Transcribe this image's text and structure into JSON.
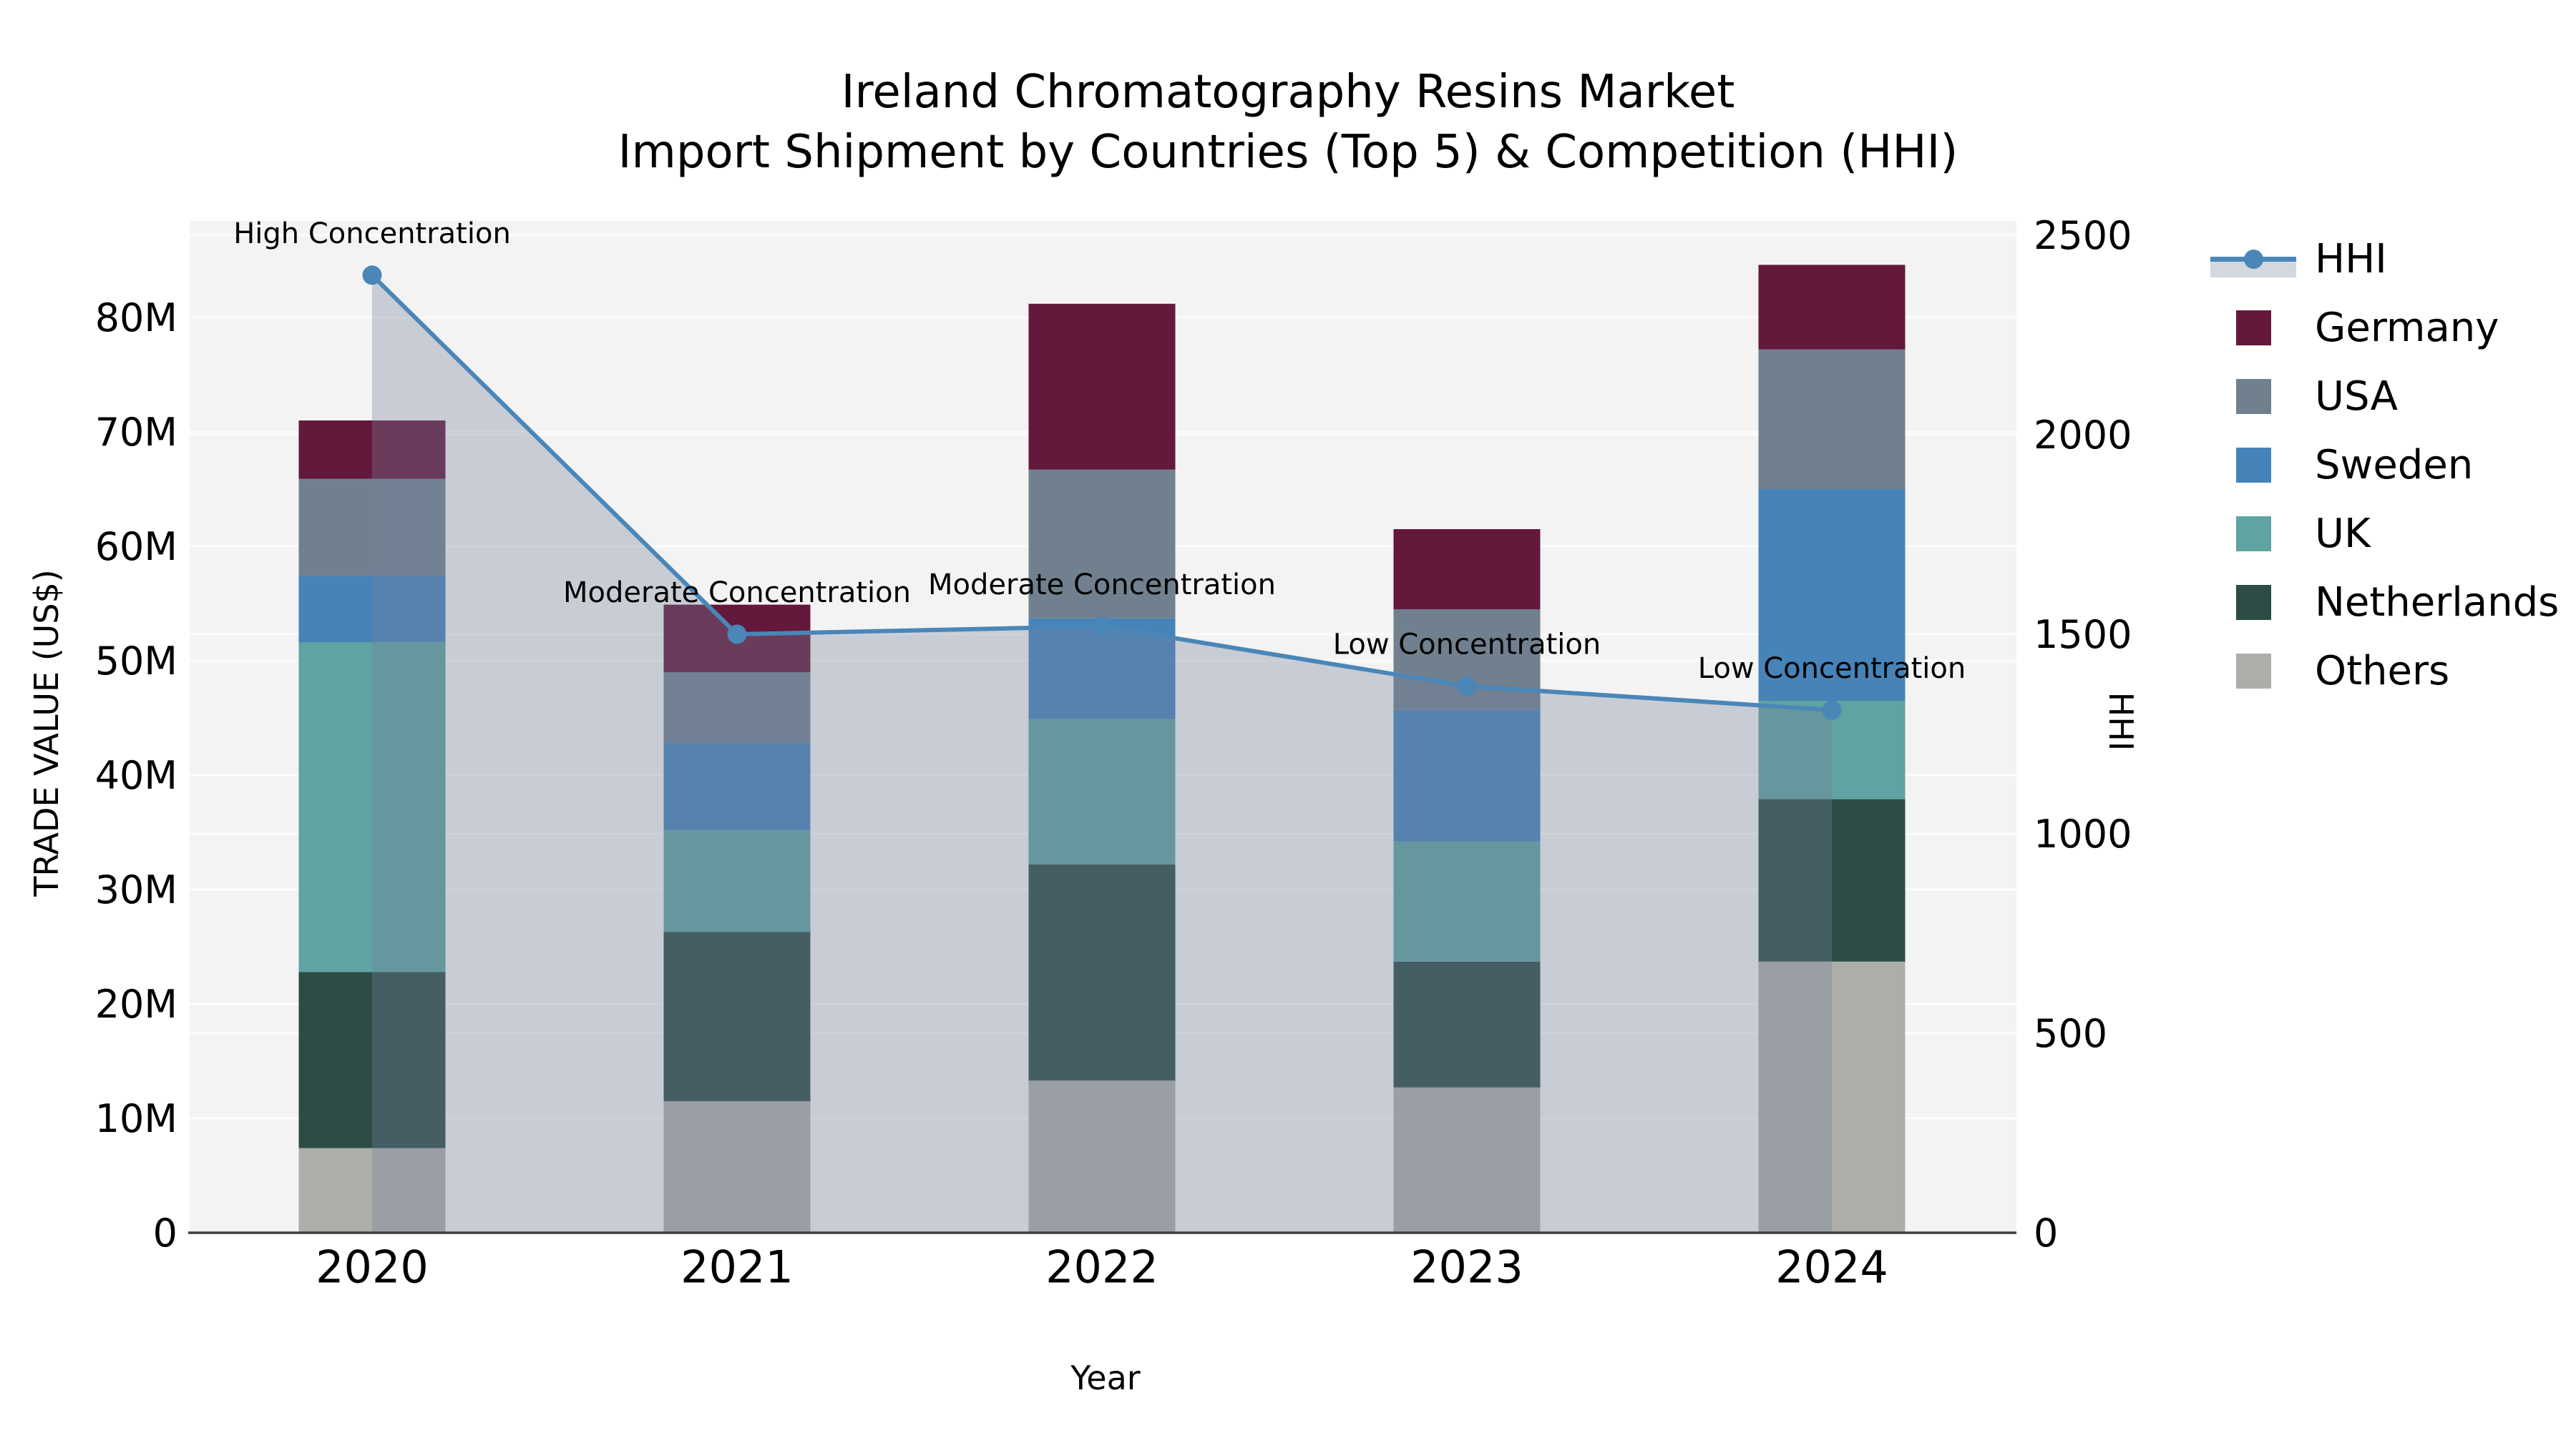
{
  "title": {
    "line1": "Ireland Chromatography Resins Market",
    "line2": "Import Shipment by Countries (Top 5) & Competition (HHI)"
  },
  "axes": {
    "x": {
      "label": "Year",
      "ticks": [
        "2020",
        "2021",
        "2022",
        "2023",
        "2024"
      ]
    },
    "left": {
      "label": "TRADE VALUE (US$)",
      "ticks": [
        {
          "label": "0",
          "value": 0
        },
        {
          "label": "10M",
          "value": 10
        },
        {
          "label": "20M",
          "value": 20
        },
        {
          "label": "30M",
          "value": 30
        },
        {
          "label": "40M",
          "value": 40
        },
        {
          "label": "50M",
          "value": 50
        },
        {
          "label": "60M",
          "value": 60
        },
        {
          "label": "70M",
          "value": 70
        },
        {
          "label": "80M",
          "value": 80
        }
      ]
    },
    "right": {
      "label": "HHI",
      "ticks": [
        {
          "label": "0",
          "value": 0
        },
        {
          "label": "500",
          "value": 500
        },
        {
          "label": "1000",
          "value": 1000
        },
        {
          "label": "1500",
          "value": 1500
        },
        {
          "label": "2000",
          "value": 2000
        },
        {
          "label": "2500",
          "value": 2500
        }
      ]
    }
  },
  "legend": {
    "items": [
      {
        "label": "HHI",
        "kind": "line"
      },
      {
        "label": "Germany",
        "kind": "patch"
      },
      {
        "label": "USA",
        "kind": "patch"
      },
      {
        "label": "Sweden",
        "kind": "patch"
      },
      {
        "label": "UK",
        "kind": "patch"
      },
      {
        "label": "Netherlands",
        "kind": "patch"
      },
      {
        "label": "Others",
        "kind": "patch"
      }
    ]
  },
  "colors": {
    "plot_bg": "#f3f3f3",
    "grid": "#ffffff",
    "axis_line": "#3f3f3f",
    "hhi_line": "#4a86b8",
    "hhi_fill": "rgba(118,130,156,0.34)",
    "hhi_fill_legend": "#d3d7de",
    "Germany": "#64183b",
    "USA": "#70808f",
    "Sweden": "#4683b9",
    "UK": "#5fa3a2",
    "Netherlands": "#2d4c46",
    "Others": "#adaeaa",
    "text": "#000000"
  },
  "chart_data": {
    "type": "combo: stacked bar (left axis) + line with area fill (right axis)",
    "x": [
      2020,
      2021,
      2022,
      2023,
      2024
    ],
    "bar_unit": "US$ millions (left axis, TRADE VALUE)",
    "stack_order_bottom_to_top": [
      "Others",
      "Netherlands",
      "UK",
      "Sweden",
      "USA",
      "Germany"
    ],
    "series": [
      {
        "name": "Germany",
        "values": [
          5.1,
          5.9,
          14.5,
          7.0,
          7.4
        ]
      },
      {
        "name": "USA",
        "values": [
          8.5,
          6.2,
          13.0,
          8.8,
          12.2
        ]
      },
      {
        "name": "Sweden",
        "values": [
          5.8,
          7.6,
          8.8,
          11.5,
          18.5
        ]
      },
      {
        "name": "UK",
        "values": [
          28.8,
          8.9,
          12.7,
          10.5,
          8.6
        ]
      },
      {
        "name": "Netherlands",
        "values": [
          15.4,
          14.8,
          18.9,
          11.0,
          14.2
        ]
      },
      {
        "name": "Others",
        "values": [
          7.4,
          11.5,
          13.3,
          12.7,
          23.7
        ]
      }
    ],
    "bar_totals": [
      71.0,
      54.9,
      81.2,
      61.5,
      84.6
    ],
    "line_series": {
      "name": "HHI",
      "axis": "right",
      "values": [
        2400,
        1500,
        1520,
        1370,
        1310
      ]
    },
    "annotations": [
      {
        "x": 2020,
        "text": "High Concentration"
      },
      {
        "x": 2021,
        "text": "Moderate Concentration"
      },
      {
        "x": 2022,
        "text": "Moderate Concentration"
      },
      {
        "x": 2023,
        "text": "Low Concentration"
      },
      {
        "x": 2024,
        "text": "Low Concentration"
      }
    ],
    "xlabel": "Year",
    "ylabel_left": "TRADE VALUE (US$)",
    "ylabel_right": "HHI",
    "ylim_left": [
      0,
      88.4
    ],
    "ylim_right": [
      0,
      2535
    ],
    "grid": true,
    "legend_position": "right"
  }
}
